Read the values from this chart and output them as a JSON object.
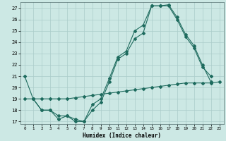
{
  "xlabel": "Humidex (Indice chaleur)",
  "bg_color": "#cce8e4",
  "grid_color": "#aaccca",
  "line_color": "#1e6b5e",
  "xlim": [
    -0.5,
    23.5
  ],
  "ylim": [
    16.8,
    27.5
  ],
  "yticks": [
    17,
    18,
    19,
    20,
    21,
    22,
    23,
    24,
    25,
    26,
    27
  ],
  "xticks": [
    0,
    1,
    2,
    3,
    4,
    5,
    6,
    7,
    8,
    9,
    10,
    11,
    12,
    13,
    14,
    15,
    16,
    17,
    18,
    19,
    20,
    21,
    22,
    23
  ],
  "line1_x": [
    0,
    1,
    2,
    3,
    4,
    5,
    6,
    7,
    8,
    9,
    10,
    11,
    12,
    13,
    14,
    15,
    16,
    17,
    18,
    19,
    20,
    21,
    22
  ],
  "line1_y": [
    21.0,
    19.0,
    18.0,
    18.0,
    17.2,
    17.5,
    17.0,
    17.0,
    18.0,
    18.7,
    20.5,
    22.5,
    23.0,
    24.3,
    24.8,
    27.2,
    27.2,
    27.2,
    26.0,
    24.5,
    23.5,
    21.8,
    21.0
  ],
  "line2_x": [
    1,
    2,
    3,
    4,
    5,
    6,
    7,
    8,
    9,
    10,
    11,
    12,
    13,
    14,
    15,
    16,
    17,
    18,
    19,
    20,
    21,
    22
  ],
  "line2_y": [
    19.0,
    18.0,
    18.0,
    17.5,
    17.5,
    17.2,
    17.0,
    18.5,
    19.0,
    20.8,
    22.7,
    23.2,
    25.0,
    25.5,
    27.2,
    27.2,
    27.3,
    26.2,
    24.7,
    23.7,
    22.0,
    20.5
  ],
  "line3_x": [
    0,
    1,
    2,
    3,
    4,
    5,
    6,
    7,
    8,
    9,
    10,
    11,
    12,
    13,
    14,
    15,
    16,
    17,
    18,
    19,
    20,
    21,
    22,
    23
  ],
  "line3_y": [
    19.0,
    19.0,
    19.0,
    19.0,
    19.0,
    19.0,
    19.1,
    19.2,
    19.3,
    19.4,
    19.5,
    19.6,
    19.7,
    19.8,
    19.9,
    20.0,
    20.1,
    20.2,
    20.3,
    20.4,
    20.4,
    20.4,
    20.4,
    20.5
  ]
}
